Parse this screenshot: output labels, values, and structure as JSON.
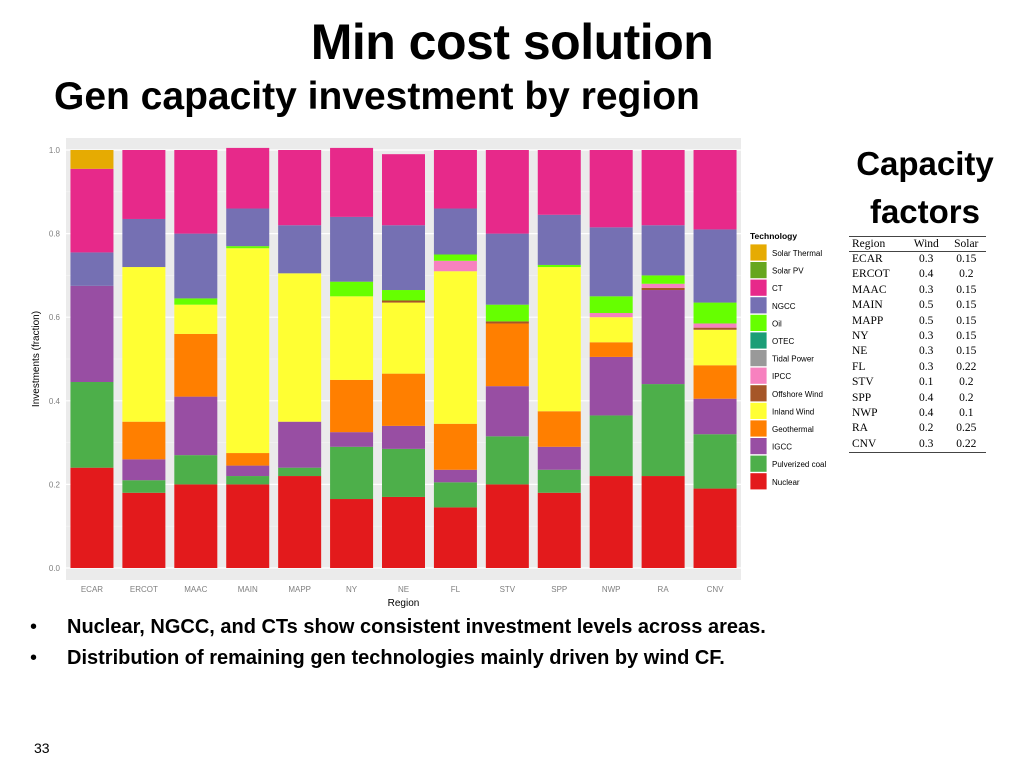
{
  "slide": {
    "title": "Min cost solution",
    "subtitle": "Gen capacity investment by region",
    "page_number": "33",
    "bullets": [
      "Nuclear, NGCC, and CTs show consistent investment levels across areas.",
      "Distribution of remaining gen technologies mainly driven by wind CF."
    ]
  },
  "capacity_factors": {
    "title": "Capacity factors",
    "headers": [
      "Region",
      "Wind",
      "Solar"
    ],
    "rows": [
      [
        "ECAR",
        "0.3",
        "0.15"
      ],
      [
        "ERCOT",
        "0.4",
        "0.2"
      ],
      [
        "MAAC",
        "0.3",
        "0.15"
      ],
      [
        "MAIN",
        "0.5",
        "0.15"
      ],
      [
        "MAPP",
        "0.5",
        "0.15"
      ],
      [
        "NY",
        "0.3",
        "0.15"
      ],
      [
        "NE",
        "0.3",
        "0.15"
      ],
      [
        "FL",
        "0.3",
        "0.22"
      ],
      [
        "STV",
        "0.1",
        "0.2"
      ],
      [
        "SPP",
        "0.4",
        "0.2"
      ],
      [
        "NWP",
        "0.4",
        "0.1"
      ],
      [
        "RA",
        "0.2",
        "0.25"
      ],
      [
        "CNV",
        "0.3",
        "0.22"
      ]
    ]
  },
  "chart_data": {
    "type": "bar",
    "stacked": true,
    "xlabel": "Region",
    "ylabel": "Investments (fraction)",
    "ylim": [
      0,
      1
    ],
    "yticks": [
      "0.0",
      "0.2",
      "0.4",
      "0.6",
      "0.8",
      "1.0"
    ],
    "grid": true,
    "legend_title": "Technology",
    "legend_position": "right",
    "categories": [
      "ECAR",
      "ERCOT",
      "MAAC",
      "MAIN",
      "MAPP",
      "NY",
      "NE",
      "FL",
      "STV",
      "SPP",
      "NWP",
      "RA",
      "CNV"
    ],
    "series": [
      {
        "name": "Nuclear",
        "color": "#e31a1c",
        "values": [
          0.24,
          0.18,
          0.2,
          0.2,
          0.22,
          0.165,
          0.17,
          0.145,
          0.2,
          0.18,
          0.22,
          0.22,
          0.19
        ]
      },
      {
        "name": "Pulverized coal",
        "color": "#4daf4a",
        "values": [
          0.205,
          0.03,
          0.07,
          0.02,
          0.02,
          0.125,
          0.115,
          0.06,
          0.115,
          0.055,
          0.145,
          0.22,
          0.13
        ]
      },
      {
        "name": "IGCC",
        "color": "#984ea3",
        "values": [
          0.23,
          0.05,
          0.14,
          0.025,
          0.11,
          0.035,
          0.055,
          0.03,
          0.12,
          0.055,
          0.14,
          0.225,
          0.085
        ]
      },
      {
        "name": "Geothermal",
        "color": "#ff7f00",
        "values": [
          0,
          0.09,
          0.15,
          0.03,
          0,
          0.125,
          0.125,
          0.11,
          0.15,
          0.085,
          0.035,
          0,
          0.08
        ]
      },
      {
        "name": "Inland Wind",
        "color": "#ffff33",
        "values": [
          0,
          0.37,
          0.07,
          0.49,
          0.355,
          0.2,
          0.17,
          0.365,
          0,
          0.345,
          0.06,
          0,
          0.085
        ]
      },
      {
        "name": "Offshore Wind",
        "color": "#a65628",
        "values": [
          0,
          0,
          0,
          0,
          0,
          0,
          0.005,
          0,
          0.005,
          0,
          0,
          0.005,
          0.005
        ]
      },
      {
        "name": "IPCC",
        "color": "#f781bf",
        "values": [
          0,
          0,
          0,
          0,
          0,
          0,
          0,
          0.025,
          0,
          0,
          0.01,
          0.01,
          0.01
        ]
      },
      {
        "name": "Tidal Power",
        "color": "#999999",
        "values": [
          0,
          0,
          0,
          0,
          0,
          0,
          0,
          0,
          0,
          0,
          0,
          0,
          0
        ]
      },
      {
        "name": "OTEC",
        "color": "#1b9e77",
        "values": [
          0,
          0,
          0,
          0,
          0,
          0,
          0,
          0,
          0,
          0,
          0,
          0,
          0
        ]
      },
      {
        "name": "Oil",
        "color": "#66ff00",
        "values": [
          0,
          0,
          0.015,
          0.005,
          0,
          0.035,
          0.025,
          0.015,
          0.04,
          0.005,
          0.04,
          0.02,
          0.05
        ]
      },
      {
        "name": "NGCC",
        "color": "#7570b3",
        "values": [
          0.08,
          0.115,
          0.155,
          0.09,
          0.115,
          0.155,
          0.155,
          0.11,
          0.17,
          0.12,
          0.165,
          0.12,
          0.175
        ]
      },
      {
        "name": "CT",
        "color": "#e7298a",
        "values": [
          0.2,
          0.165,
          0.2,
          0.145,
          0.18,
          0.165,
          0.17,
          0.14,
          0.2,
          0.155,
          0.185,
          0.18,
          0.19
        ]
      },
      {
        "name": "Solar PV",
        "color": "#66a61e",
        "values": [
          0,
          0,
          0,
          0,
          0,
          0,
          0,
          0,
          0,
          0,
          0,
          0,
          0
        ]
      },
      {
        "name": "Solar Thermal",
        "color": "#e6ab02",
        "values": [
          0.045,
          0,
          0,
          0,
          0,
          0,
          0,
          0,
          0,
          0,
          0,
          0,
          0
        ]
      }
    ]
  }
}
